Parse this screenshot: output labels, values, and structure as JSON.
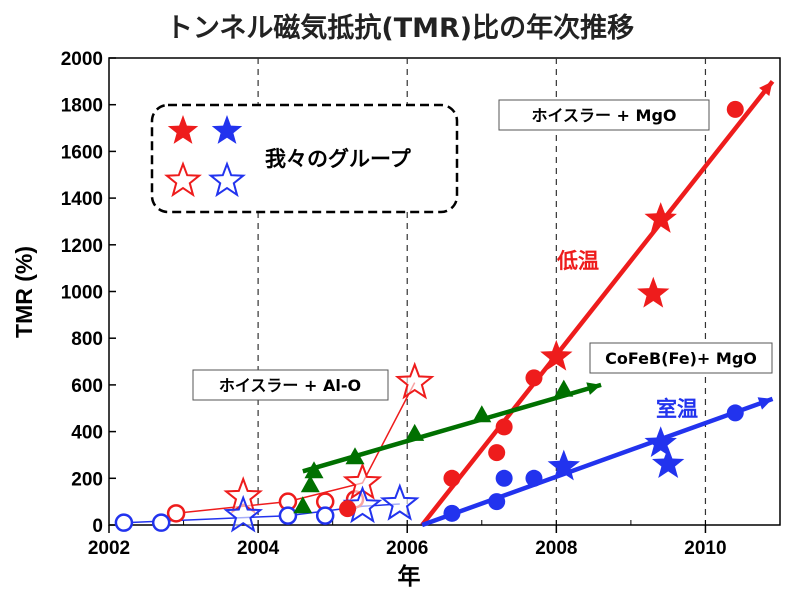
{
  "chart_data": {
    "type": "scatter",
    "title": "トンネル磁気抵抗(TMR)比の年次推移",
    "xlabel": "年",
    "ylabel": "TMR (%)",
    "xlim": [
      2002,
      2011
    ],
    "ylim": [
      0,
      2000
    ],
    "xticks": [
      "2002",
      "2004",
      "2006",
      "2008",
      "2010"
    ],
    "yticks": [
      "0",
      "200",
      "400",
      "600",
      "800",
      "1000",
      "1200",
      "1400",
      "1600",
      "1800",
      "2000"
    ],
    "grid": "dashed vertical lines at 2004, 2006, 2008, 2010",
    "legend": {
      "label": "我々のグループ",
      "placement": "top-left",
      "symbols": [
        "filled red star",
        "filled blue star",
        "open red star",
        "open blue star"
      ]
    },
    "series": [
      {
        "color": "#ee1c1c",
        "marker": "open-circle",
        "points": [
          [
            2002.9,
            50
          ],
          [
            2004.4,
            100
          ],
          [
            2004.9,
            100
          ],
          [
            2005.3,
            110
          ]
        ]
      },
      {
        "color": "#ee1c1c",
        "marker": "open-star",
        "points": [
          [
            2003.8,
            120
          ],
          [
            2005.4,
            180
          ],
          [
            2006.1,
            610
          ]
        ]
      },
      {
        "color": "#2233ee",
        "marker": "open-circle",
        "points": [
          [
            2002.2,
            10
          ],
          [
            2002.7,
            10
          ],
          [
            2004.4,
            40
          ],
          [
            2004.9,
            40
          ]
        ]
      },
      {
        "color": "#2233ee",
        "marker": "open-star",
        "points": [
          [
            2003.8,
            40
          ],
          [
            2005.4,
            80
          ],
          [
            2005.9,
            90
          ]
        ]
      },
      {
        "color": "#007000",
        "marker": "triangle",
        "points": [
          [
            2004.6,
            80
          ],
          [
            2004.7,
            170
          ],
          [
            2004.75,
            230
          ],
          [
            2005.3,
            290
          ],
          [
            2006.1,
            390
          ],
          [
            2007.0,
            470
          ],
          [
            2008.1,
            580
          ]
        ]
      },
      {
        "color": "#ee1c1c",
        "marker": "filled-circle",
        "points": [
          [
            2005.2,
            70
          ],
          [
            2006.6,
            200
          ],
          [
            2007.2,
            310
          ],
          [
            2007.3,
            420
          ],
          [
            2007.7,
            630
          ],
          [
            2010.4,
            1780
          ]
        ]
      },
      {
        "color": "#ee1c1c",
        "marker": "filled-star",
        "points": [
          [
            2008.0,
            720
          ],
          [
            2009.3,
            990
          ],
          [
            2009.4,
            1310
          ]
        ]
      },
      {
        "color": "#2233ee",
        "marker": "filled-circle",
        "points": [
          [
            2006.6,
            50
          ],
          [
            2007.2,
            100
          ],
          [
            2007.3,
            200
          ],
          [
            2007.7,
            200
          ],
          [
            2010.4,
            480
          ]
        ]
      },
      {
        "color": "#2233ee",
        "marker": "filled-star",
        "points": [
          [
            2008.1,
            250
          ],
          [
            2009.4,
            350
          ],
          [
            2009.5,
            260
          ]
        ]
      }
    ],
    "trend_lines": [
      {
        "color": "#ee1c1c",
        "from": [
          2006.2,
          0
        ],
        "to": [
          2010.9,
          1900
        ]
      },
      {
        "color": "#2233ee",
        "from": [
          2006.2,
          0
        ],
        "to": [
          2010.9,
          540
        ]
      },
      {
        "color": "#007000",
        "from": [
          2004.6,
          230
        ],
        "to": [
          2008.6,
          600
        ]
      }
    ],
    "thin_lines": [
      {
        "color": "#ee1c1c",
        "points": [
          [
            2002.9,
            50
          ],
          [
            2004.4,
            100
          ],
          [
            2005.4,
            180
          ],
          [
            2006.1,
            610
          ]
        ]
      },
      {
        "color": "#2233ee",
        "points": [
          [
            2002.2,
            10
          ],
          [
            2004.4,
            40
          ],
          [
            2005.4,
            80
          ],
          [
            2005.9,
            90
          ]
        ]
      }
    ],
    "annotations": [
      {
        "id": "heusler-mgo",
        "text": "ホイスラー + MgO",
        "boxed": true
      },
      {
        "id": "cofeb-mgo",
        "text": "CoFeB(Fe)+ MgO",
        "boxed": true
      },
      {
        "id": "heusler-alo",
        "text": "ホイスラー + Al-O",
        "boxed": true
      },
      {
        "id": "low-temp",
        "text": "低温",
        "color": "#ee1c1c"
      },
      {
        "id": "room-temp",
        "text": "室温",
        "color": "#2233ee"
      }
    ]
  }
}
